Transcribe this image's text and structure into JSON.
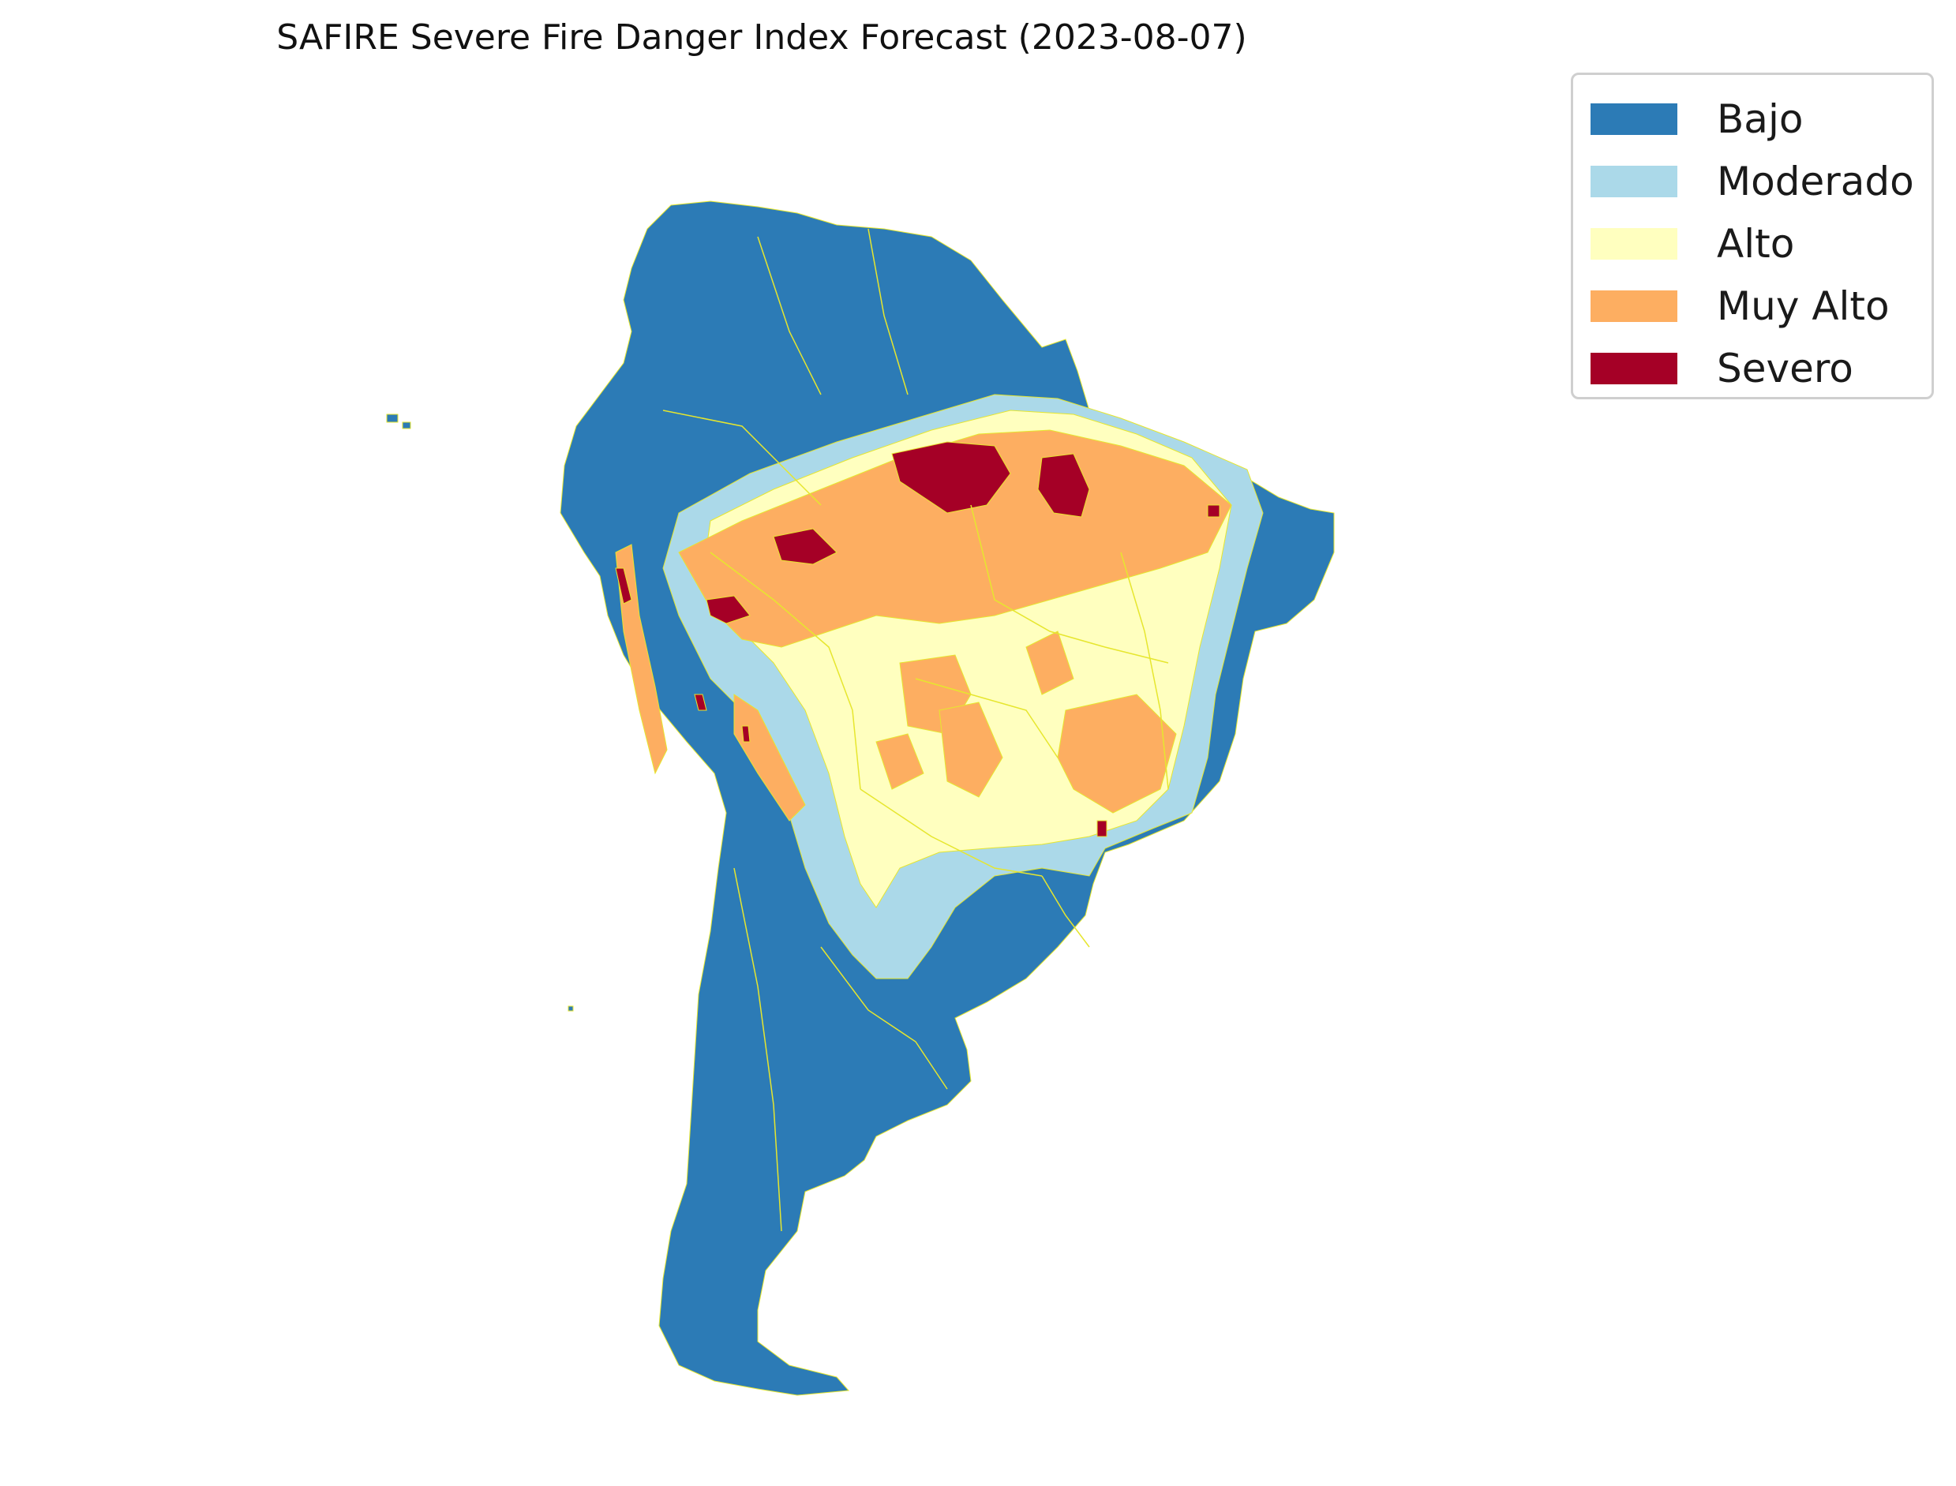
{
  "title": "SAFIRE Severe Fire Danger Index Forecast (2023-08-07)",
  "legend": {
    "items": [
      {
        "label": "Bajo",
        "color": "#2c7bb6"
      },
      {
        "label": "Moderado",
        "color": "#abd9e9"
      },
      {
        "label": "Alto",
        "color": "#ffffbf"
      },
      {
        "label": "Muy Alto",
        "color": "#fdae61"
      },
      {
        "label": "Severo",
        "color": "#a50026"
      }
    ]
  },
  "map": {
    "region": "South America",
    "border_color": "#e6e62e"
  }
}
